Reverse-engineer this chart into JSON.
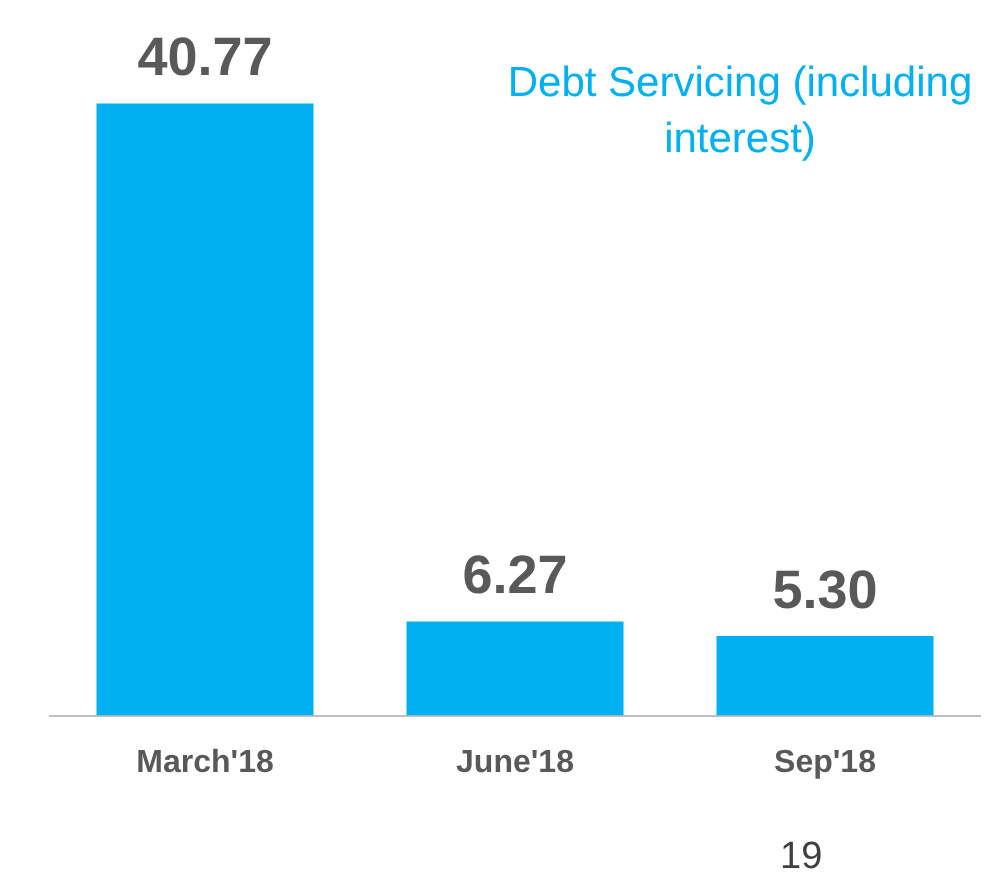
{
  "chart_data": {
    "type": "bar",
    "title": "Debt Servicing (including interest)",
    "categories": [
      "March'18",
      "June'18",
      "Sep'18"
    ],
    "values": [
      40.77,
      6.27,
      5.3
    ],
    "value_labels": [
      "40.77",
      "6.27",
      "5.30"
    ],
    "color": "#00b0f0",
    "annotations": [
      "19"
    ],
    "grid": false,
    "legend": false
  }
}
